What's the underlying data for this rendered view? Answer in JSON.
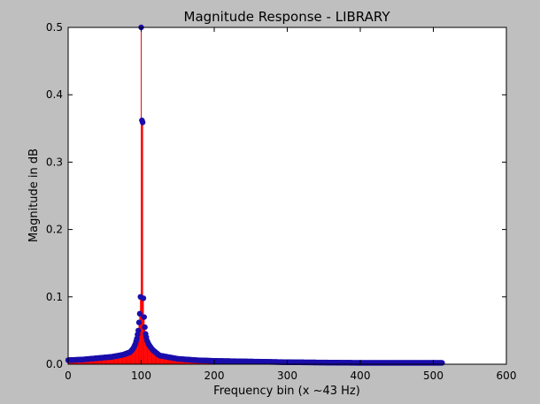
{
  "chart_data": {
    "type": "stem",
    "title": "Magnitude Response - LIBRARY",
    "xlabel": "Frequency bin (x ~43 Hz)",
    "ylabel": "Magnitude in dB",
    "xlim": [
      0,
      600
    ],
    "ylim": [
      0,
      0.5
    ],
    "xticks": [
      "0",
      "100",
      "200",
      "300",
      "400",
      "500",
      "600"
    ],
    "yticks": [
      "0.0",
      "0.1",
      "0.2",
      "0.3",
      "0.4",
      "0.5"
    ],
    "grid": false,
    "legend": "none",
    "colors": {
      "stem": "#ff0000",
      "marker": "#1a0dab",
      "figure_bg": "#bfbfbf",
      "axes_bg": "#ffffff"
    },
    "series": [
      {
        "x_range": [
          0,
          512
        ],
        "peak_bin": 100,
        "values_near_peak": [
          {
            "x": 85,
            "y": 0.018
          },
          {
            "x": 88,
            "y": 0.022
          },
          {
            "x": 90,
            "y": 0.025
          },
          {
            "x": 92,
            "y": 0.03
          },
          {
            "x": 94,
            "y": 0.038
          },
          {
            "x": 96,
            "y": 0.05
          },
          {
            "x": 97,
            "y": 0.062
          },
          {
            "x": 98,
            "y": 0.075
          },
          {
            "x": 99,
            "y": 0.1
          },
          {
            "x": 100,
            "y": 0.5
          },
          {
            "x": 101,
            "y": 0.362
          },
          {
            "x": 102,
            "y": 0.359
          },
          {
            "x": 103,
            "y": 0.098
          },
          {
            "x": 104,
            "y": 0.07
          },
          {
            "x": 105,
            "y": 0.055
          },
          {
            "x": 106,
            "y": 0.045
          },
          {
            "x": 107,
            "y": 0.04
          },
          {
            "x": 108,
            "y": 0.035
          },
          {
            "x": 110,
            "y": 0.03
          },
          {
            "x": 113,
            "y": 0.025
          },
          {
            "x": 116,
            "y": 0.021
          }
        ],
        "baseline_samples": [
          {
            "x": 0,
            "y": 0.006
          },
          {
            "x": 20,
            "y": 0.007
          },
          {
            "x": 40,
            "y": 0.009
          },
          {
            "x": 60,
            "y": 0.011
          },
          {
            "x": 75,
            "y": 0.014
          },
          {
            "x": 125,
            "y": 0.013
          },
          {
            "x": 150,
            "y": 0.008
          },
          {
            "x": 175,
            "y": 0.006
          },
          {
            "x": 200,
            "y": 0.005
          },
          {
            "x": 250,
            "y": 0.004
          },
          {
            "x": 300,
            "y": 0.003
          },
          {
            "x": 400,
            "y": 0.002
          },
          {
            "x": 512,
            "y": 0.002
          }
        ]
      }
    ]
  }
}
